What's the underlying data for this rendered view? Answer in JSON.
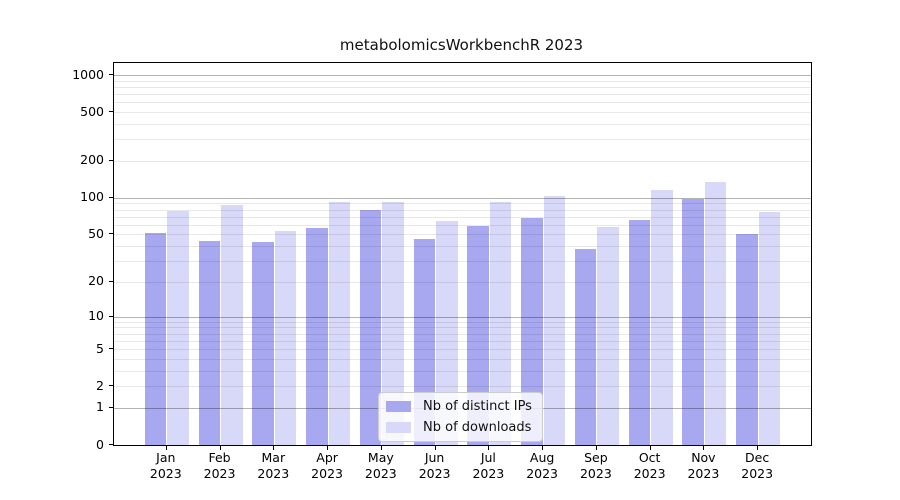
{
  "chart_data": {
    "type": "bar",
    "title": "metabolomicsWorkbenchR 2023",
    "categories": [
      "Jan",
      "Feb",
      "Mar",
      "Apr",
      "May",
      "Jun",
      "Jul",
      "Aug",
      "Sep",
      "Oct",
      "Nov",
      "Dec"
    ],
    "category_year": "2023",
    "series": [
      {
        "name": "Nb of distinct IPs",
        "color": "#a8a8f0",
        "values": [
          51,
          44,
          43,
          56,
          80,
          46,
          59,
          68,
          38,
          66,
          98,
          50
        ]
      },
      {
        "name": "Nb of downloads",
        "color": "#d8d8f8",
        "values": [
          78,
          88,
          53,
          93,
          93,
          64,
          93,
          103,
          58,
          115,
          134,
          76
        ]
      }
    ],
    "xlabel": "",
    "ylabel": "",
    "yscale": "log1p",
    "ylim": [
      0,
      1250
    ],
    "yticks": [
      1000,
      500,
      200,
      100,
      50,
      20,
      10,
      5,
      2,
      1,
      0
    ],
    "grid": "horizontal major at powers of 10, faint minors at 2-9 per decade",
    "legend_position": "bottom-center inside plot"
  }
}
